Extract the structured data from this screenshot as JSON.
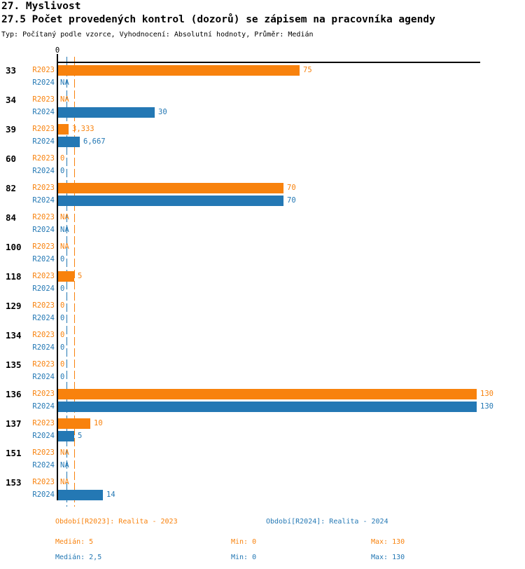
{
  "header": {
    "title": "27. Myslivost",
    "subtitle": "27.5 Počet provedených kontrol (dozorů) se zápisem na pracovníka agendy",
    "meta": "Typ: Počítaný podle vzorce, Vyhodnocení: Absolutní hodnoty, Průměr: Medián"
  },
  "axis": {
    "zero_label": "0"
  },
  "colors": {
    "r2023": "#F8820D",
    "r2024": "#2478B4"
  },
  "chart_data": {
    "type": "bar",
    "orientation": "horizontal",
    "title": "27.5 Počet provedených kontrol (dozorů) se zápisem na pracovníka agendy",
    "categories": [
      "33",
      "34",
      "39",
      "60",
      "82",
      "84",
      "100",
      "118",
      "129",
      "134",
      "135",
      "136",
      "137",
      "151",
      "153"
    ],
    "series": [
      {
        "name": "R2023",
        "label": "Realita - 2023",
        "color": "#F8820D",
        "values": [
          75,
          null,
          3.333,
          0,
          70,
          null,
          null,
          5,
          0,
          0,
          0,
          130,
          10,
          null,
          null
        ],
        "display": [
          "75",
          "NA",
          "3,333",
          "0",
          "70",
          "NA",
          "NA",
          "5",
          "0",
          "0",
          "0",
          "130",
          "10",
          "NA",
          "NA"
        ],
        "median": 5,
        "min": 0,
        "max": 130
      },
      {
        "name": "R2024",
        "label": "Realita - 2024",
        "color": "#2478B4",
        "values": [
          null,
          30,
          6.667,
          0,
          70,
          null,
          0,
          0,
          0,
          0,
          0,
          130,
          5,
          null,
          14
        ],
        "display": [
          "NA",
          "30",
          "6,667",
          "0",
          "70",
          "NA",
          "0",
          "0",
          "0",
          "0",
          "0",
          "130",
          "5",
          "NA",
          "14"
        ],
        "median": 2.5,
        "min": 0,
        "max": 130
      }
    ],
    "x_axis": {
      "min": 0,
      "tick_labels": [
        "0"
      ],
      "grid": false
    },
    "median_lines": [
      {
        "series": "R2023",
        "value": 5
      },
      {
        "series": "R2024",
        "value": 2.5
      }
    ],
    "legend_position": "bottom"
  },
  "legend": {
    "r2023": "Období[R2023]: Realita - 2023",
    "r2024": "Období[R2024]: Realita - 2024"
  },
  "stats": {
    "r2023": {
      "median": "Medián: 5",
      "min": "Min: 0",
      "max": "Max: 130"
    },
    "r2024": {
      "median": "Medián: 2,5",
      "min": "Min: 0",
      "max": "Max: 130"
    }
  }
}
